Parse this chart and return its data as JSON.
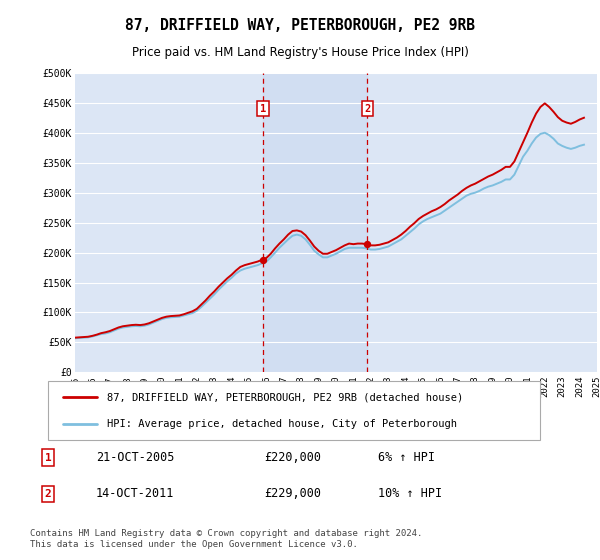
{
  "title": "87, DRIFFIELD WAY, PETERBOROUGH, PE2 9RB",
  "subtitle": "Price paid vs. HM Land Registry's House Price Index (HPI)",
  "background_color": "#ffffff",
  "plot_background": "#dce6f5",
  "plot_background_light": "#e8eef8",
  "grid_color": "#ffffff",
  "hpi_line_color": "#7fbfdf",
  "price_line_color": "#cc0000",
  "marker_dashed_color": "#cc0000",
  "ylim": [
    0,
    500000
  ],
  "yticks": [
    0,
    50000,
    100000,
    150000,
    200000,
    250000,
    300000,
    350000,
    400000,
    450000,
    500000
  ],
  "ytick_labels": [
    "£0",
    "£50K",
    "£100K",
    "£150K",
    "£200K",
    "£250K",
    "£300K",
    "£350K",
    "£400K",
    "£450K",
    "£500K"
  ],
  "sale1_date": "21-OCT-2005",
  "sale1_price": 220000,
  "sale1_hpi": "6% ↑ HPI",
  "sale1_year": 2005.8,
  "sale2_date": "14-OCT-2011",
  "sale2_price": 229000,
  "sale2_hpi": "10% ↑ HPI",
  "sale2_year": 2011.8,
  "legend_label1": "87, DRIFFIELD WAY, PETERBOROUGH, PE2 9RB (detached house)",
  "legend_label2": "HPI: Average price, detached house, City of Peterborough",
  "footnote": "Contains HM Land Registry data © Crown copyright and database right 2024.\nThis data is licensed under the Open Government Licence v3.0.",
  "hpi_data_x": [
    1995,
    1995.25,
    1995.5,
    1995.75,
    1996,
    1996.25,
    1996.5,
    1996.75,
    1997,
    1997.25,
    1997.5,
    1997.75,
    1998,
    1998.25,
    1998.5,
    1998.75,
    1999,
    1999.25,
    1999.5,
    1999.75,
    2000,
    2000.25,
    2000.5,
    2000.75,
    2001,
    2001.25,
    2001.5,
    2001.75,
    2002,
    2002.25,
    2002.5,
    2002.75,
    2003,
    2003.25,
    2003.5,
    2003.75,
    2004,
    2004.25,
    2004.5,
    2004.75,
    2005,
    2005.25,
    2005.5,
    2005.75,
    2006,
    2006.25,
    2006.5,
    2006.75,
    2007,
    2007.25,
    2007.5,
    2007.75,
    2008,
    2008.25,
    2008.5,
    2008.75,
    2009,
    2009.25,
    2009.5,
    2009.75,
    2010,
    2010.25,
    2010.5,
    2010.75,
    2011,
    2011.25,
    2011.5,
    2011.75,
    2012,
    2012.25,
    2012.5,
    2012.75,
    2013,
    2013.25,
    2013.5,
    2013.75,
    2014,
    2014.25,
    2014.5,
    2014.75,
    2015,
    2015.25,
    2015.5,
    2015.75,
    2016,
    2016.25,
    2016.5,
    2016.75,
    2017,
    2017.25,
    2017.5,
    2017.75,
    2018,
    2018.25,
    2018.5,
    2018.75,
    2019,
    2019.25,
    2019.5,
    2019.75,
    2020,
    2020.25,
    2020.5,
    2020.75,
    2021,
    2021.25,
    2021.5,
    2021.75,
    2022,
    2022.25,
    2022.5,
    2022.75,
    2023,
    2023.25,
    2023.5,
    2023.75,
    2024,
    2024.25
  ],
  "hpi_data_y": [
    57000,
    57500,
    58000,
    58500,
    60000,
    62000,
    64000,
    65000,
    67000,
    70000,
    73000,
    75000,
    76000,
    77000,
    77500,
    77000,
    78000,
    80000,
    83000,
    86000,
    89000,
    91000,
    92000,
    92500,
    93000,
    95000,
    97000,
    99000,
    103000,
    109000,
    116000,
    123000,
    130000,
    138000,
    145000,
    152000,
    158000,
    165000,
    170000,
    173000,
    175000,
    177000,
    179000,
    182000,
    185000,
    192000,
    200000,
    208000,
    215000,
    222000,
    228000,
    230000,
    228000,
    222000,
    213000,
    203000,
    197000,
    192000,
    192000,
    195000,
    198000,
    202000,
    206000,
    208000,
    208000,
    208000,
    208000,
    207000,
    205000,
    205000,
    206000,
    208000,
    210000,
    214000,
    218000,
    222000,
    228000,
    234000,
    240000,
    247000,
    252000,
    256000,
    259000,
    262000,
    265000,
    270000,
    275000,
    280000,
    285000,
    290000,
    295000,
    298000,
    300000,
    303000,
    307000,
    310000,
    312000,
    315000,
    318000,
    322000,
    322000,
    330000,
    345000,
    360000,
    370000,
    382000,
    392000,
    398000,
    400000,
    396000,
    390000,
    382000,
    378000,
    375000,
    373000,
    375000,
    378000,
    380000
  ],
  "price_data_x": [
    1995,
    1995.25,
    1995.5,
    1995.75,
    1996,
    1996.25,
    1996.5,
    1996.75,
    1997,
    1997.25,
    1997.5,
    1997.75,
    1998,
    1998.25,
    1998.5,
    1998.75,
    1999,
    1999.25,
    1999.5,
    1999.75,
    2000,
    2000.25,
    2000.5,
    2000.75,
    2001,
    2001.25,
    2001.5,
    2001.75,
    2002,
    2002.25,
    2002.5,
    2002.75,
    2003,
    2003.25,
    2003.5,
    2003.75,
    2004,
    2004.25,
    2004.5,
    2004.75,
    2005,
    2005.25,
    2005.5,
    2005.75,
    2006,
    2006.25,
    2006.5,
    2006.75,
    2007,
    2007.25,
    2007.5,
    2007.75,
    2008,
    2008.25,
    2008.5,
    2008.75,
    2009,
    2009.25,
    2009.5,
    2009.75,
    2010,
    2010.25,
    2010.5,
    2010.75,
    2011,
    2011.25,
    2011.5,
    2011.75,
    2012,
    2012.25,
    2012.5,
    2012.75,
    2013,
    2013.25,
    2013.5,
    2013.75,
    2014,
    2014.25,
    2014.5,
    2014.75,
    2015,
    2015.25,
    2015.5,
    2015.75,
    2016,
    2016.25,
    2016.5,
    2016.75,
    2017,
    2017.25,
    2017.5,
    2017.75,
    2018,
    2018.25,
    2018.5,
    2018.75,
    2019,
    2019.25,
    2019.5,
    2019.75,
    2020,
    2020.25,
    2020.5,
    2020.75,
    2021,
    2021.25,
    2021.5,
    2021.75,
    2022,
    2022.25,
    2022.5,
    2022.75,
    2023,
    2023.25,
    2023.5,
    2023.75,
    2024,
    2024.25
  ],
  "price_data_y": [
    58000,
    58500,
    59000,
    59500,
    61000,
    63000,
    65500,
    67000,
    69000,
    72000,
    75000,
    77000,
    78000,
    79000,
    79500,
    79000,
    80000,
    82000,
    85000,
    88000,
    91000,
    93000,
    94000,
    94500,
    95000,
    97000,
    99500,
    102000,
    106000,
    113000,
    120000,
    128000,
    135000,
    143000,
    150000,
    157000,
    163000,
    170000,
    176000,
    179000,
    181000,
    183000,
    185000,
    188000,
    191000,
    198000,
    207000,
    215000,
    222000,
    230000,
    236000,
    237000,
    235000,
    229000,
    220000,
    210000,
    203000,
    198000,
    198000,
    201000,
    204000,
    208000,
    212000,
    215000,
    214000,
    215000,
    215000,
    214000,
    212000,
    212000,
    213000,
    215000,
    217000,
    221000,
    225000,
    230000,
    236000,
    243000,
    249000,
    256000,
    261000,
    265000,
    269000,
    272000,
    276000,
    281000,
    287000,
    292000,
    297000,
    303000,
    308000,
    312000,
    315000,
    319000,
    323000,
    327000,
    330000,
    334000,
    338000,
    343000,
    343000,
    352000,
    368000,
    384000,
    400000,
    417000,
    432000,
    443000,
    449000,
    443000,
    435000,
    426000,
    420000,
    417000,
    415000,
    418000,
    422000,
    425000
  ],
  "xtick_years": [
    1995,
    1996,
    1997,
    1998,
    1999,
    2000,
    2001,
    2002,
    2003,
    2004,
    2005,
    2006,
    2007,
    2008,
    2009,
    2010,
    2011,
    2012,
    2013,
    2014,
    2015,
    2016,
    2017,
    2018,
    2019,
    2020,
    2021,
    2022,
    2023,
    2024,
    2025
  ]
}
